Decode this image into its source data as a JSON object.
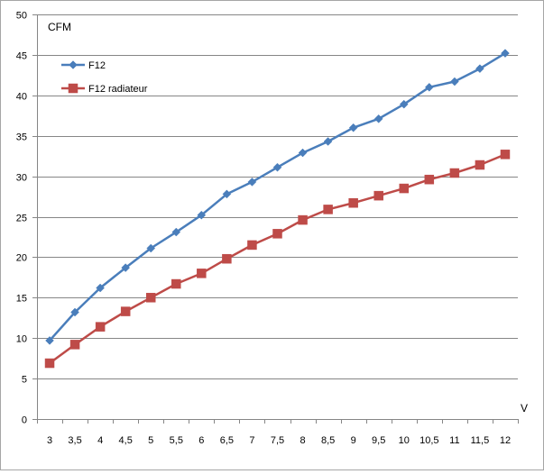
{
  "chart_data": {
    "type": "line",
    "title": "",
    "ylabel": "CFM",
    "xlabel": "V",
    "ylim": [
      0,
      50
    ],
    "yticks": [
      "0",
      "5",
      "10",
      "15",
      "20",
      "25",
      "30",
      "35",
      "40",
      "45",
      "50"
    ],
    "ytick_values": [
      0,
      5,
      10,
      15,
      20,
      25,
      30,
      35,
      40,
      45,
      50
    ],
    "categories": [
      "3",
      "3,5",
      "4",
      "4,5",
      "5",
      "5,5",
      "6",
      "6,5",
      "7",
      "7,5",
      "8",
      "8,5",
      "9",
      "9,5",
      "10",
      "10,5",
      "11",
      "11,5",
      "12"
    ],
    "grid": true,
    "legend_position": "top-left",
    "series": [
      {
        "name": "F12",
        "color": "#4a7ebb",
        "marker": "diamond",
        "values": [
          9.7,
          13.2,
          16.2,
          18.7,
          21.1,
          23.1,
          25.2,
          27.8,
          29.3,
          31.1,
          32.9,
          34.3,
          36.0,
          37.1,
          38.9,
          41.0,
          41.7,
          43.3,
          45.2
        ]
      },
      {
        "name": "F12 radiateur",
        "color": "#be4b48",
        "marker": "square",
        "values": [
          6.9,
          9.2,
          11.4,
          13.3,
          15.0,
          16.7,
          18.0,
          19.8,
          21.5,
          22.9,
          24.6,
          25.9,
          26.7,
          27.6,
          28.5,
          29.6,
          30.4,
          31.4,
          32.7
        ]
      }
    ]
  }
}
